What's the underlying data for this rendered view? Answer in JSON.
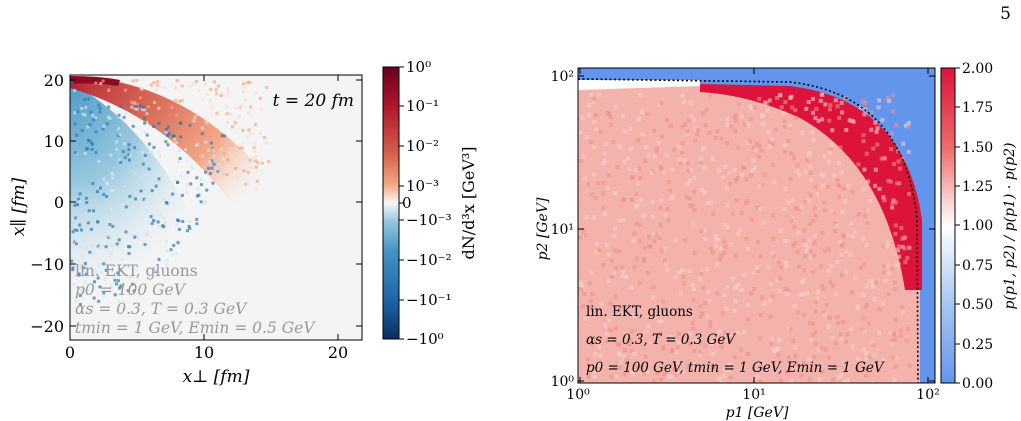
{
  "page_number": "5",
  "colors": {
    "neg_dark": "#053061",
    "neg_mid": "#4393c3",
    "neutral": "#f7f7f7",
    "pos_mid": "#f4a582",
    "pos_dark": "#67001f",
    "background_blue": "#6495ed",
    "ratio_red": "#dc143c",
    "annotation_grey": "#999999"
  },
  "left_panel": {
    "annotation": "t = 20 fm",
    "info_lines": [
      "lin. EKT, gluons",
      "p0 = 100 GeV",
      "αs = 0.3, T = 0.3 GeV",
      "tmin = 1 GeV, Emin = 0.5 GeV"
    ],
    "xlabel": "x⊥ [fm]",
    "ylabel": "x∥ [fm]",
    "xticks": [
      "0",
      "10",
      "20"
    ],
    "yticks": [
      "20",
      "10",
      "0",
      "−10",
      "−20"
    ],
    "colorbar_label": "dN/d³x [GeV³]",
    "colorbar_ticks": [
      "10⁰",
      "10⁻¹",
      "10⁻²",
      "10⁻³",
      "0",
      "−10⁻³",
      "−10⁻²",
      "−10⁻¹",
      "−10⁰"
    ]
  },
  "right_panel": {
    "info_lines": [
      "lin. EKT, gluons",
      "αs = 0.3, T = 0.3 GeV",
      "p0 = 100 GeV, tmin = 1 GeV, Emin = 1 GeV"
    ],
    "xlabel": "p1 [GeV]",
    "ylabel": "p2 [GeV]",
    "xticks": [
      "10⁰",
      "10¹",
      "10²"
    ],
    "yticks": [
      "10²",
      "10¹",
      "10⁰"
    ],
    "colorbar_label": "p(p1, p2) / p(p1) · p(p2)",
    "colorbar_ticks": [
      "2.00",
      "1.75",
      "1.50",
      "1.25",
      "1.00",
      "0.75",
      "0.50",
      "0.25",
      "0.00"
    ]
  }
}
